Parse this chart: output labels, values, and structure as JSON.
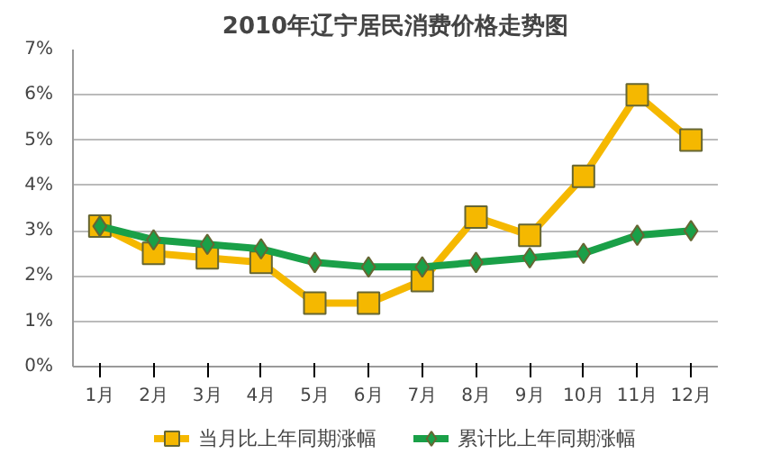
{
  "chart_data": {
    "type": "line",
    "title": "2010年辽宁居民消费价格走势图",
    "categories": [
      "1月",
      "2月",
      "3月",
      "4月",
      "5月",
      "6月",
      "7月",
      "8月",
      "9月",
      "10月",
      "11月",
      "12月"
    ],
    "series": [
      {
        "name": "当月比上年同期涨幅",
        "color": "#f5b800",
        "marker": "square",
        "values": [
          3.1,
          2.5,
          2.4,
          2.3,
          1.4,
          1.4,
          1.9,
          3.3,
          2.9,
          4.2,
          6.0,
          5.0
        ]
      },
      {
        "name": "累计比上年同期涨幅",
        "color": "#1aa048",
        "marker": "diamond",
        "values": [
          3.1,
          2.8,
          2.7,
          2.6,
          2.3,
          2.2,
          2.2,
          2.3,
          2.4,
          2.5,
          2.9,
          3.0
        ]
      }
    ],
    "ylim": [
      0,
      7
    ],
    "yticks": [
      {
        "value": 0,
        "label": "0%"
      },
      {
        "value": 1,
        "label": "1%"
      },
      {
        "value": 2,
        "label": "2%"
      },
      {
        "value": 3,
        "label": "3%"
      },
      {
        "value": 4,
        "label": "4%"
      },
      {
        "value": 5,
        "label": "5%"
      },
      {
        "value": 6,
        "label": "6%"
      },
      {
        "value": 7,
        "label": "7%"
      }
    ],
    "grid": "y",
    "legend": "bottom"
  }
}
